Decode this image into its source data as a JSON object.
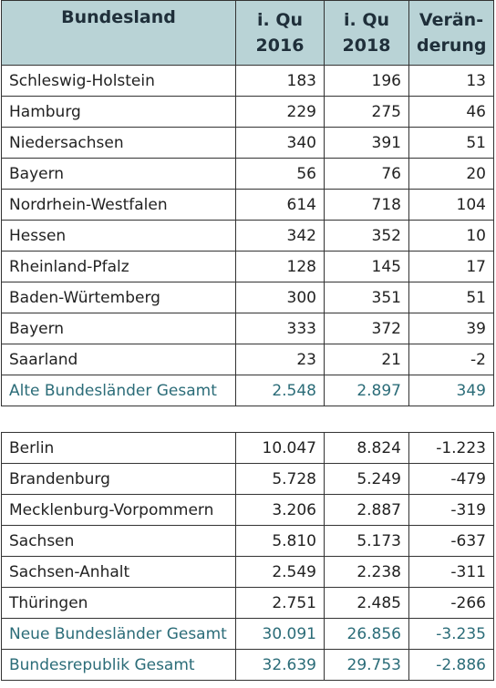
{
  "header": {
    "columns": [
      [
        "Bundesland"
      ],
      [
        "i. Qu",
        "2016"
      ],
      [
        "i. Qu",
        "2018"
      ],
      [
        "Verän-",
        "derung"
      ]
    ]
  },
  "tables": [
    {
      "rows": [
        [
          "Schleswig-Holstein",
          "183",
          "196",
          "13"
        ],
        [
          "Hamburg",
          "229",
          "275",
          "46"
        ],
        [
          "Niedersachsen",
          "340",
          "391",
          "51"
        ],
        [
          "Bayern",
          "56",
          "76",
          "20"
        ],
        [
          "Nordrhein-Westfalen",
          "614",
          "718",
          "104"
        ],
        [
          "Hessen",
          "342",
          "352",
          "10"
        ],
        [
          "Rheinland-Pfalz",
          "128",
          "145",
          "17"
        ],
        [
          "Baden-Würtemberg",
          "300",
          "351",
          "51"
        ],
        [
          "Bayern",
          "333",
          "372",
          "39"
        ],
        [
          "Saarland",
          "23",
          "21",
          "-2"
        ]
      ],
      "totals": [
        [
          "Alte Bundesländer Gesamt",
          "2.548",
          "2.897",
          "349"
        ]
      ]
    },
    {
      "rows": [
        [
          "Berlin",
          "10.047",
          "8.824",
          "-1.223"
        ],
        [
          "Brandenburg",
          "5.728",
          "5.249",
          "-479"
        ],
        [
          "Mecklenburg-Vorpommern",
          "3.206",
          "2.887",
          "-319"
        ],
        [
          "Sachsen",
          "5.810",
          "5.173",
          "-637"
        ],
        [
          "Sachsen-Anhalt",
          "2.549",
          "2.238",
          "-311"
        ],
        [
          "Thüringen",
          "2.751",
          "2.485",
          "-266"
        ]
      ],
      "totals": [
        [
          "Neue Bundesländer Gesamt",
          "30.091",
          "26.856",
          "-3.235"
        ],
        [
          "Bundesrepublik Gesamt",
          "32.639",
          "29.753",
          "-2.886"
        ]
      ]
    }
  ]
}
